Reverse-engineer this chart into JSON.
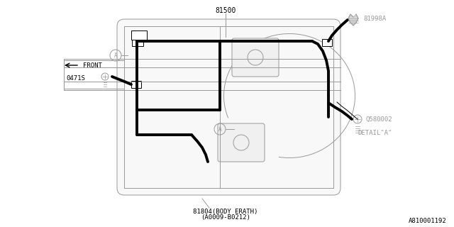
{
  "bg_color": "#ffffff",
  "line_color": "#000000",
  "gray_color": "#999999",
  "figsize": [
    6.4,
    3.2
  ],
  "dpi": 100,
  "title": "81500",
  "label_81998A": "81998A",
  "label_0471S": "0471S",
  "label_FRONT": "FRONT",
  "label_Q580002": "Q580002",
  "label_DETAIL_A": "DETAIL\"A\"",
  "label_81804": "81804(BODY ERATH)",
  "label_A0009": "(A0009-B0212)",
  "label_ref": "A810001192"
}
